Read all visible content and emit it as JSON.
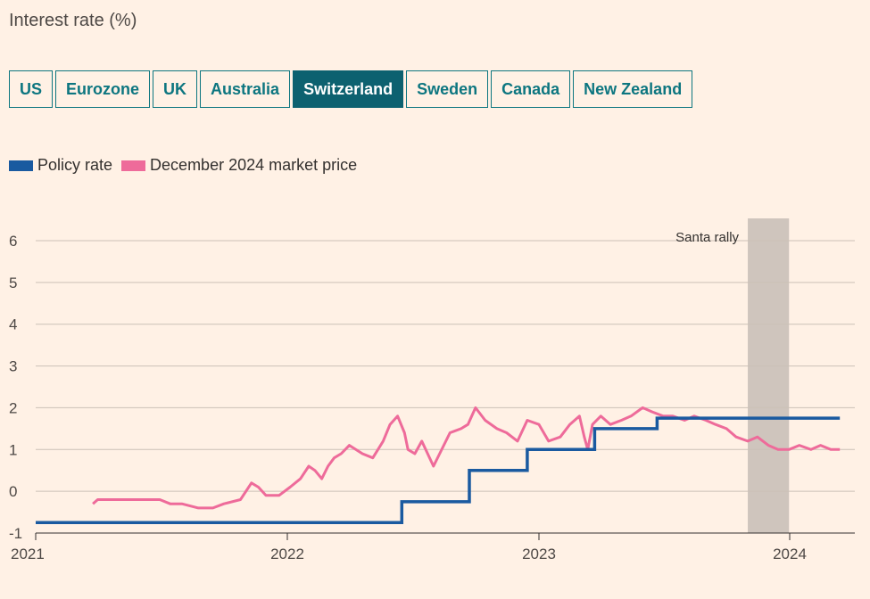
{
  "header": {
    "title": "Interest rate (%)"
  },
  "tabs": [
    {
      "label": "US",
      "active": false
    },
    {
      "label": "Eurozone",
      "active": false
    },
    {
      "label": "UK",
      "active": false
    },
    {
      "label": "Australia",
      "active": false
    },
    {
      "label": "Switzerland",
      "active": true
    },
    {
      "label": "Sweden",
      "active": false
    },
    {
      "label": "Canada",
      "active": false
    },
    {
      "label": "New Zealand",
      "active": false
    }
  ],
  "colors": {
    "accent": "#0d6170",
    "policy": "#1a5aa0",
    "market": "#ee6b9a",
    "shade": "#cfc5bd",
    "background": "#fff1e5"
  },
  "chart_data": {
    "type": "line",
    "title": "Interest rate (%)",
    "xlabel": "",
    "ylabel": "",
    "xlim": [
      "2021-01-01",
      "2024-03-31"
    ],
    "ylim": [
      -1,
      6.5
    ],
    "yticks": [
      -1,
      0,
      1,
      2,
      3,
      4,
      5,
      6
    ],
    "ytick_labels": [
      "-1",
      "0",
      "1",
      "2",
      "3",
      "4",
      "5",
      "6"
    ],
    "xticks": [
      "2021-01-01",
      "2022-01-01",
      "2023-01-01",
      "2024-01-01"
    ],
    "xtick_labels": [
      "2021",
      "2022",
      "2023",
      "2024"
    ],
    "grid": true,
    "legend_position": "top-left",
    "annotations": [
      {
        "text": "Santa rally",
        "x_start": "2023-11-01",
        "x_end": "2023-12-31"
      }
    ],
    "series": [
      {
        "name": "Policy rate",
        "step": true,
        "x": [
          "2021-01-01",
          "2022-06-16",
          "2022-09-22",
          "2022-12-15",
          "2023-03-23",
          "2023-06-22",
          "2024-03-14"
        ],
        "values": [
          -0.75,
          -0.25,
          0.5,
          1.0,
          1.5,
          1.75,
          1.75
        ]
      },
      {
        "name": "December 2024 market price",
        "step": false,
        "x": [
          "2021-03-25",
          "2021-04-01",
          "2021-06-30",
          "2021-07-15",
          "2021-08-01",
          "2021-08-25",
          "2021-09-15",
          "2021-10-01",
          "2021-10-25",
          "2021-11-10",
          "2021-11-20",
          "2021-12-01",
          "2021-12-20",
          "2022-01-05",
          "2022-01-20",
          "2022-02-01",
          "2022-02-10",
          "2022-02-20",
          "2022-03-01",
          "2022-03-10",
          "2022-03-20",
          "2022-04-01",
          "2022-04-20",
          "2022-05-05",
          "2022-05-20",
          "2022-05-30",
          "2022-06-10",
          "2022-06-20",
          "2022-06-25",
          "2022-07-05",
          "2022-07-15",
          "2022-08-01",
          "2022-08-10",
          "2022-08-25",
          "2022-09-10",
          "2022-09-20",
          "2022-10-01",
          "2022-10-15",
          "2022-11-01",
          "2022-11-15",
          "2022-12-01",
          "2022-12-15",
          "2023-01-01",
          "2023-01-15",
          "2023-02-01",
          "2023-02-15",
          "2023-03-01",
          "2023-03-08",
          "2023-03-13",
          "2023-03-20",
          "2023-04-01",
          "2023-04-15",
          "2023-05-01",
          "2023-05-15",
          "2023-06-01",
          "2023-06-15",
          "2023-07-01",
          "2023-07-15",
          "2023-08-01",
          "2023-08-15",
          "2023-09-01",
          "2023-09-15",
          "2023-10-01",
          "2023-10-15",
          "2023-11-01",
          "2023-11-15",
          "2023-12-01",
          "2023-12-15",
          "2023-12-31",
          "2024-01-15",
          "2024-02-01",
          "2024-02-15",
          "2024-03-01",
          "2024-03-14"
        ],
        "values": [
          -0.3,
          -0.2,
          -0.2,
          -0.3,
          -0.3,
          -0.4,
          -0.4,
          -0.3,
          -0.2,
          0.2,
          0.1,
          -0.1,
          -0.1,
          0.1,
          0.3,
          0.6,
          0.5,
          0.3,
          0.6,
          0.8,
          0.9,
          1.1,
          0.9,
          0.8,
          1.2,
          1.6,
          1.8,
          1.4,
          1.0,
          0.9,
          1.2,
          0.6,
          0.9,
          1.4,
          1.5,
          1.6,
          2.0,
          1.7,
          1.5,
          1.4,
          1.2,
          1.7,
          1.6,
          1.2,
          1.3,
          1.6,
          1.8,
          1.3,
          1.0,
          1.6,
          1.8,
          1.6,
          1.7,
          1.8,
          2.0,
          1.9,
          1.8,
          1.8,
          1.7,
          1.8,
          1.7,
          1.6,
          1.5,
          1.3,
          1.2,
          1.3,
          1.1,
          1.0,
          1.0,
          1.1,
          1.0,
          1.1,
          1.0,
          1.0
        ]
      }
    ]
  }
}
